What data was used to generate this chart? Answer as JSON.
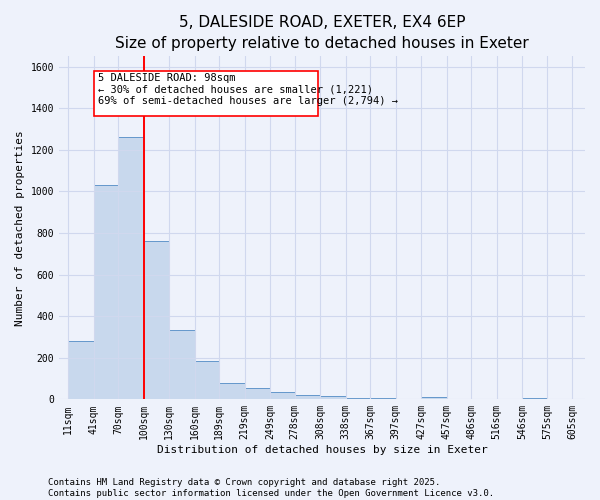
{
  "title": "5, DALESIDE ROAD, EXETER, EX4 6EP",
  "subtitle": "Size of property relative to detached houses in Exeter",
  "xlabel": "Distribution of detached houses by size in Exeter",
  "ylabel": "Number of detached properties",
  "bar_color": "#c8d8ed",
  "bar_edge_color": "#6699cc",
  "bar_left_edges": [
    11,
    41,
    70,
    100,
    130,
    160,
    189,
    219,
    249,
    278,
    308,
    338,
    367,
    397,
    427,
    457,
    486,
    516,
    546,
    575
  ],
  "bar_widths": [
    30,
    29,
    30,
    30,
    30,
    29,
    30,
    30,
    29,
    30,
    30,
    29,
    30,
    30,
    30,
    29,
    30,
    30,
    29,
    30
  ],
  "bar_heights": [
    280,
    1030,
    1260,
    760,
    335,
    185,
    80,
    55,
    35,
    20,
    15,
    5,
    5,
    0,
    10,
    0,
    0,
    0,
    5,
    0
  ],
  "xtick_labels": [
    "11sqm",
    "41sqm",
    "70sqm",
    "100sqm",
    "130sqm",
    "160sqm",
    "189sqm",
    "219sqm",
    "249sqm",
    "278sqm",
    "308sqm",
    "338sqm",
    "367sqm",
    "397sqm",
    "427sqm",
    "457sqm",
    "486sqm",
    "516sqm",
    "546sqm",
    "575sqm",
    "605sqm"
  ],
  "xtick_positions": [
    11,
    41,
    70,
    100,
    130,
    160,
    189,
    219,
    249,
    278,
    308,
    338,
    367,
    397,
    427,
    457,
    486,
    516,
    546,
    575,
    605
  ],
  "ylim": [
    0,
    1650
  ],
  "xlim": [
    0,
    620
  ],
  "yticks": [
    0,
    200,
    400,
    600,
    800,
    1000,
    1200,
    1400,
    1600
  ],
  "red_line_x": 100,
  "annotation_title": "5 DALESIDE ROAD: 98sqm",
  "annotation_line2": "← 30% of detached houses are smaller (1,221)",
  "annotation_line3": "69% of semi-detached houses are larger (2,794) →",
  "footer1": "Contains HM Land Registry data © Crown copyright and database right 2025.",
  "footer2": "Contains public sector information licensed under the Open Government Licence v3.0.",
  "bg_color": "#eef2fb",
  "grid_color": "#d0d8ee",
  "title_fontsize": 11,
  "subtitle_fontsize": 9.5,
  "axis_label_fontsize": 8,
  "tick_fontsize": 7,
  "annotation_fontsize": 7.5,
  "footer_fontsize": 6.5
}
